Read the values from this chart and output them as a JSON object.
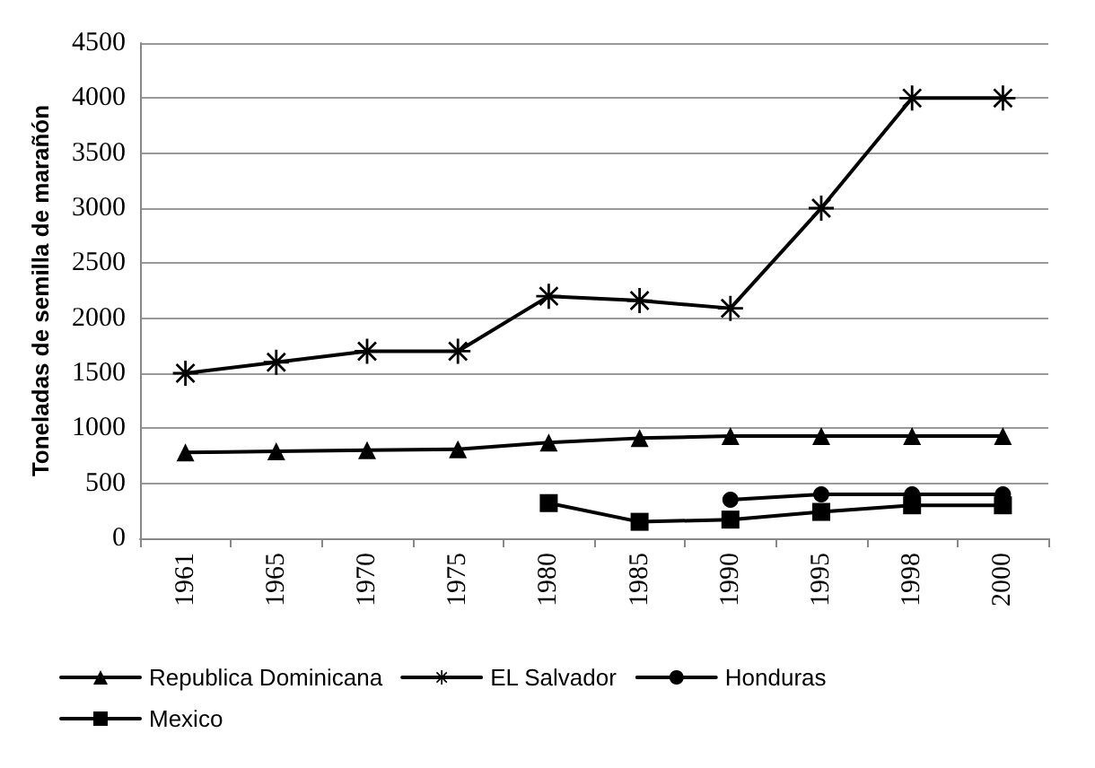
{
  "chart_data": {
    "type": "line",
    "ylabel": "Toneladas de semilla de marañón",
    "categories": [
      "1961",
      "1965",
      "1970",
      "1975",
      "1980",
      "1985",
      "1990",
      "1995",
      "1998",
      "2000"
    ],
    "series": [
      {
        "name": "Republica Dominicana",
        "color": "#000000",
        "marker": "triangle",
        "values": [
          780,
          790,
          800,
          810,
          870,
          910,
          930,
          930,
          930,
          930
        ]
      },
      {
        "name": "EL Salvador",
        "color": "#000000",
        "marker": "star",
        "values": [
          1500,
          1600,
          1700,
          1700,
          2200,
          2160,
          2090,
          3000,
          4000,
          4000
        ]
      },
      {
        "name": "Honduras",
        "color": "#000000",
        "marker": "circle",
        "values": [
          null,
          null,
          null,
          null,
          null,
          null,
          350,
          400,
          400,
          400
        ]
      },
      {
        "name": "Mexico",
        "color": "#000000",
        "marker": "square",
        "values": [
          null,
          null,
          null,
          null,
          320,
          150,
          170,
          240,
          300,
          300
        ]
      }
    ],
    "ylim": [
      0,
      4500
    ],
    "yticks": [
      0,
      500,
      1000,
      1500,
      2000,
      2500,
      3000,
      3500,
      4000,
      4500
    ],
    "grid": "y",
    "legend": "bottom",
    "line_style": "solid"
  }
}
